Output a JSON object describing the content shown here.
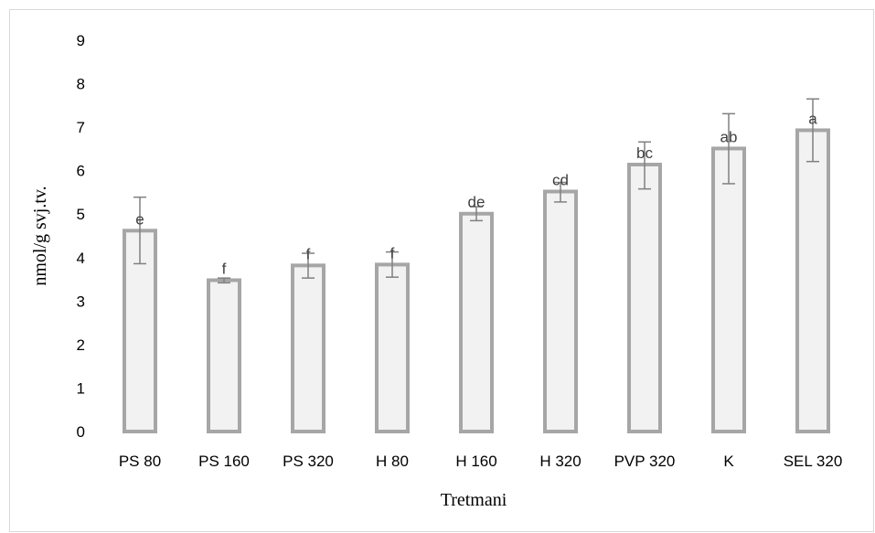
{
  "chart_data": {
    "type": "bar",
    "title": "",
    "xlabel": "Tretmani",
    "ylabel": "nmol/g svj.tv.",
    "ylim": [
      0,
      9
    ],
    "yticks": [
      "0",
      "1",
      "2",
      "3",
      "4",
      "5",
      "6",
      "7",
      "8",
      "9"
    ],
    "grid": false,
    "legend": "none",
    "categories": [
      "PS 80",
      "PS 160",
      "PS 320",
      "H 80",
      "H 160",
      "H 320",
      "PVP 320",
      "K",
      "SEL 320"
    ],
    "values": [
      4.62,
      3.48,
      3.82,
      3.84,
      5.01,
      5.52,
      6.14,
      6.51,
      6.93
    ],
    "error_low": [
      3.86,
      3.42,
      3.53,
      3.55,
      4.85,
      5.28,
      5.58,
      5.7,
      6.21
    ],
    "error_high": [
      5.39,
      3.53,
      4.1,
      4.13,
      5.17,
      5.73,
      6.66,
      7.31,
      7.65
    ],
    "significance_labels": [
      "e",
      "f",
      "f",
      "f",
      "de",
      "cd",
      "bc",
      "ab",
      "a"
    ],
    "colors": {
      "bar_fill": "#f2f2f2",
      "bar_stroke": "#a6a6a6",
      "error_bar": "#808080"
    }
  }
}
